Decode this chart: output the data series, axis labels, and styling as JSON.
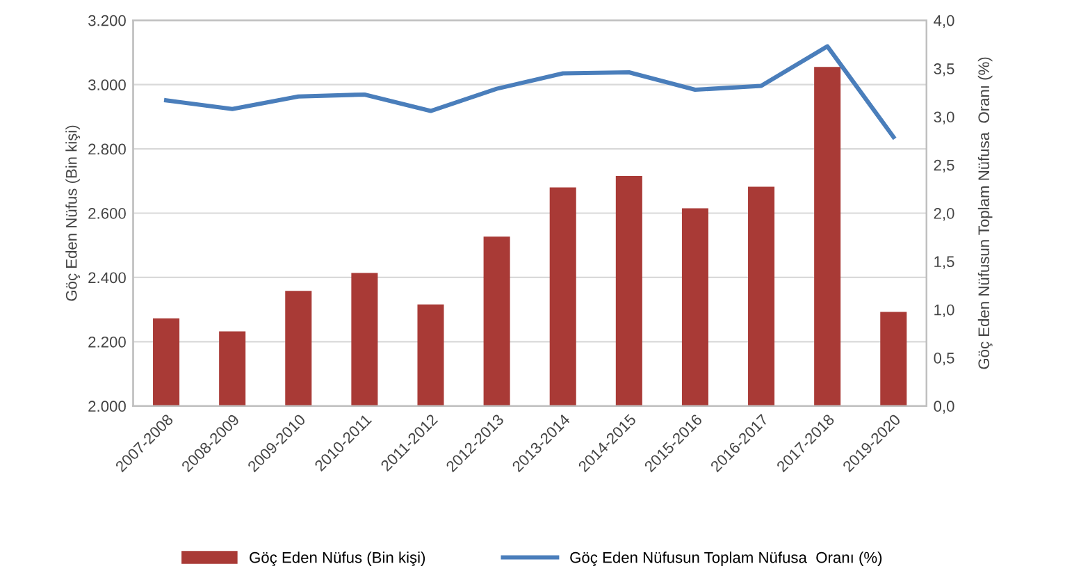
{
  "chart_data": {
    "type": "bar",
    "ylabel": "Göç Eden Nüfus (Bin kişi)",
    "y2label": "Göç Eden Nüfusun Toplam Nüfusa  Oranı (%)",
    "categories": [
      "2007-2008",
      "2008-2009",
      "2009-2010",
      "2010-2011",
      "2011-2012",
      "2012-2013",
      "2013-2014",
      "2014-2015",
      "2015-2016",
      "2016-2017",
      "2017-2018",
      "2019-2020"
    ],
    "series": [
      {
        "name": "Göç Eden Nüfus (Bin kişi)",
        "color": "#a93a36",
        "values": [
          2273,
          2232,
          2358,
          2414,
          2316,
          2527,
          2680,
          2716,
          2615,
          2682,
          3055,
          2293
        ]
      },
      {
        "name": "Göç Eden Nüfusun Toplam Nüfusa  Oranı (%)",
        "type": "line",
        "axis": "y2",
        "color": "#4a7ebb",
        "values": [
          3.17,
          3.08,
          3.21,
          3.23,
          3.06,
          3.29,
          3.45,
          3.46,
          3.28,
          3.32,
          3.73,
          2.79
        ]
      }
    ],
    "ylim": [
      2000,
      3200
    ],
    "yticks": [
      {
        "value": 2000,
        "label": "2.000"
      },
      {
        "value": 2200,
        "label": "2.200"
      },
      {
        "value": 2400,
        "label": "2.400"
      },
      {
        "value": 2600,
        "label": "2.600"
      },
      {
        "value": 2800,
        "label": "2.800"
      },
      {
        "value": 3000,
        "label": "3.000"
      },
      {
        "value": 3200,
        "label": "3.200"
      }
    ],
    "y2lim": [
      0,
      4
    ],
    "y2ticks": [
      {
        "value": 0,
        "label": "0,0"
      },
      {
        "value": 0.5,
        "label": "0,5"
      },
      {
        "value": 1,
        "label": "1,0"
      },
      {
        "value": 1.5,
        "label": "1,5"
      },
      {
        "value": 2,
        "label": "2,0"
      },
      {
        "value": 2.5,
        "label": "2,5"
      },
      {
        "value": 3,
        "label": "3,0"
      },
      {
        "value": 3.5,
        "label": "3,5"
      },
      {
        "value": 4,
        "label": "4,0"
      }
    ],
    "grid": "y",
    "legend": "bottom",
    "marker": "none",
    "line_style": "solid"
  }
}
